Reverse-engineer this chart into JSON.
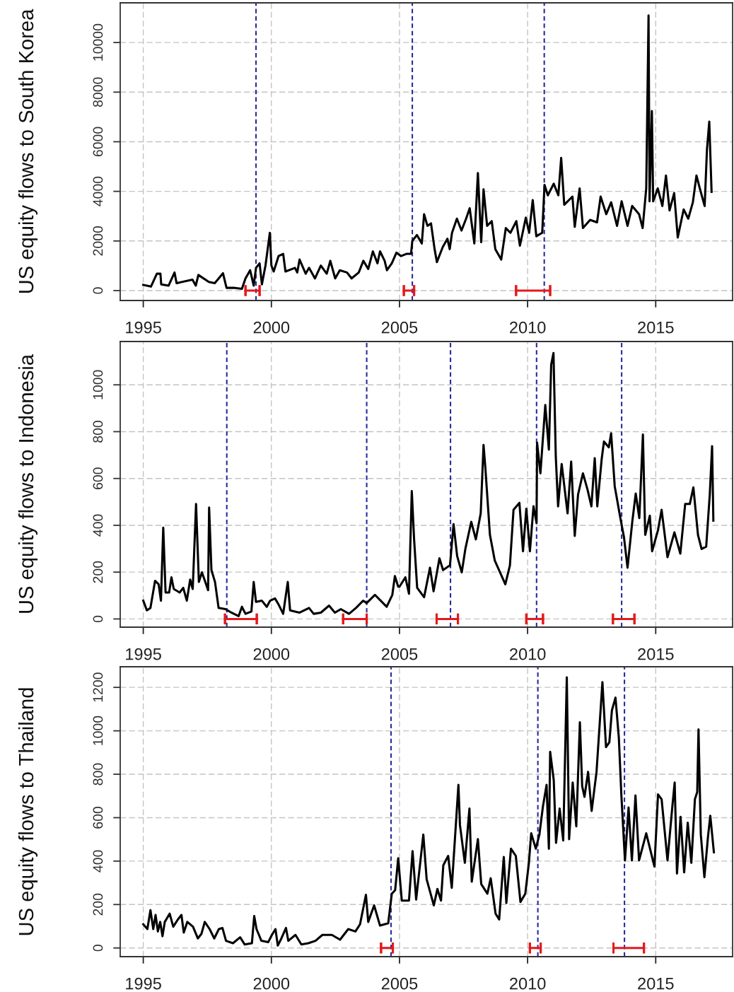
{
  "chart_data": [
    {
      "type": "line",
      "ylabel": "US equity flows to South Korea",
      "xlim": [
        1994.1,
        2018.0
      ],
      "ylim": [
        -400,
        11600
      ],
      "xticks": [
        1995,
        2000,
        2005,
        2010,
        2015
      ],
      "yticks": [
        0,
        2000,
        4000,
        6000,
        8000,
        10000
      ],
      "grid": true,
      "series": [
        {
          "color": "#000000",
          "x": [
            1995.0,
            1995.3,
            1995.53,
            1995.67,
            1995.7,
            1995.99,
            1996.22,
            1996.3,
            1996.92,
            1997.05,
            1997.15,
            1997.56,
            1997.79,
            1998.11,
            1998.25,
            1998.53,
            1998.85,
            1998.99,
            1999.17,
            1999.31,
            1999.4,
            1999.54,
            1999.63,
            1999.77,
            1999.94,
            2000.0,
            2000.09,
            2000.28,
            2000.46,
            2000.55,
            2000.92,
            2001.01,
            2001.1,
            2001.34,
            2001.47,
            2001.7,
            2001.93,
            2002.16,
            2002.3,
            2002.49,
            2002.67,
            2002.95,
            2003.13,
            2003.41,
            2003.59,
            2003.78,
            2003.96,
            2004.14,
            2004.24,
            2004.42,
            2004.51,
            2004.7,
            2004.88,
            2005.06,
            2005.27,
            2005.45,
            2005.5,
            2005.68,
            2005.87,
            2005.96,
            2006.09,
            2006.23,
            2006.37,
            2006.46,
            2006.69,
            2006.87,
            2006.96,
            2007.05,
            2007.24,
            2007.42,
            2007.6,
            2007.74,
            2007.92,
            2008.06,
            2008.19,
            2008.28,
            2008.42,
            2008.6,
            2008.74,
            2008.97,
            2009.15,
            2009.33,
            2009.56,
            2009.7,
            2009.93,
            2010.06,
            2010.2,
            2010.34,
            2010.57,
            2010.66,
            2010.79,
            2011.02,
            2011.2,
            2011.31,
            2011.43,
            2011.75,
            2011.84,
            2012.03,
            2012.16,
            2012.44,
            2012.71,
            2012.85,
            2013.07,
            2013.26,
            2013.49,
            2013.67,
            2013.9,
            2014.08,
            2014.35,
            2014.49,
            2014.63,
            2014.72,
            2014.76,
            2014.85,
            2014.9,
            2015.08,
            2015.26,
            2015.4,
            2015.54,
            2015.72,
            2015.86,
            2016.09,
            2016.27,
            2016.45,
            2016.59,
            2016.72,
            2016.91,
            2017.0,
            2017.09,
            2017.18
          ],
          "values": [
            230,
            160,
            680,
            680,
            250,
            200,
            730,
            300,
            440,
            200,
            630,
            350,
            300,
            700,
            110,
            110,
            70,
            490,
            820,
            200,
            915,
            1100,
            250,
            1010,
            2330,
            1010,
            770,
            1390,
            1480,
            770,
            915,
            730,
            1250,
            680,
            915,
            490,
            1010,
            680,
            1200,
            490,
            820,
            730,
            490,
            730,
            1200,
            870,
            1580,
            1100,
            1580,
            1200,
            820,
            1100,
            1530,
            1390,
            1480,
            1480,
            2000,
            2240,
            1900,
            3080,
            2610,
            2710,
            1670,
            1150,
            1760,
            2090,
            1670,
            2330,
            2900,
            2420,
            2900,
            3320,
            1900,
            4740,
            1950,
            4080,
            2610,
            2800,
            1670,
            1250,
            2520,
            2330,
            2800,
            1810,
            2940,
            2330,
            3650,
            2190,
            2330,
            4260,
            3840,
            4310,
            3840,
            5350,
            3460,
            3790,
            2570,
            4120,
            2520,
            2850,
            2750,
            3790,
            3080,
            3560,
            2610,
            3600,
            2610,
            3410,
            3080,
            2520,
            4120,
            11090,
            3600,
            7240,
            3600,
            4120,
            3410,
            4640,
            3230,
            3930,
            2140,
            3270,
            2900,
            3560,
            4640,
            4120,
            3410,
            5680,
            6810,
            3980
          ]
        },
        {
          "color": "#e31a1c",
          "x": [
            1998.99,
            1999.54
          ],
          "values": [
            0,
            0
          ]
        },
        {
          "color": "#e31a1c",
          "x": [
            2005.17,
            2005.57
          ],
          "values": [
            0,
            0
          ]
        },
        {
          "color": "#e31a1c",
          "x": [
            2009.55,
            2010.88
          ],
          "values": [
            0,
            0
          ]
        }
      ],
      "ref_lines": [
        {
          "axis": "x",
          "value": 1999.4,
          "color": "#2a2a9c",
          "line_style": "dashed"
        },
        {
          "axis": "x",
          "value": 2005.5,
          "color": "#2a2a9c",
          "line_style": "dashed"
        },
        {
          "axis": "x",
          "value": 2010.65,
          "color": "#2a2a9c",
          "line_style": "dashed"
        }
      ]
    },
    {
      "type": "line",
      "ylabel": "US equity flows to Indonesia",
      "xlim": [
        1994.1,
        2018.0
      ],
      "ylim": [
        -35,
        1185
      ],
      "xticks": [
        1995,
        2000,
        2005,
        2010,
        2015
      ],
      "yticks": [
        0,
        200,
        400,
        600,
        800,
        1000
      ],
      "grid": true,
      "series": [
        {
          "color": "#000000",
          "x": [
            1995.0,
            1995.14,
            1995.28,
            1995.46,
            1995.6,
            1995.69,
            1995.78,
            1995.87,
            1996.01,
            1996.1,
            1996.19,
            1996.42,
            1996.56,
            1996.7,
            1996.83,
            1996.93,
            1997.06,
            1997.17,
            1997.29,
            1997.42,
            1997.53,
            1997.57,
            1997.66,
            1997.8,
            1997.94,
            1998.21,
            1998.44,
            1998.72,
            1998.85,
            1998.99,
            1999.22,
            1999.31,
            1999.4,
            1999.63,
            1999.82,
            1999.95,
            2000.14,
            2000.28,
            2000.46,
            2000.64,
            2000.73,
            2001.1,
            2001.47,
            2001.65,
            2001.93,
            2002.25,
            2002.48,
            2002.71,
            2003.03,
            2003.3,
            2003.58,
            2003.72,
            2004.04,
            2004.5,
            2004.72,
            2004.82,
            2004.95,
            2005.0,
            2005.23,
            2005.37,
            2005.48,
            2005.57,
            2005.69,
            2005.96,
            2006.19,
            2006.33,
            2006.56,
            2006.7,
            2006.97,
            2007.11,
            2007.25,
            2007.43,
            2007.57,
            2007.8,
            2007.98,
            2008.17,
            2008.28,
            2008.35,
            2008.53,
            2008.72,
            2008.99,
            2009.13,
            2009.31,
            2009.45,
            2009.68,
            2009.82,
            2009.95,
            2010.09,
            2010.23,
            2010.35,
            2010.37,
            2010.5,
            2010.69,
            2010.83,
            2010.92,
            2011.01,
            2011.1,
            2011.19,
            2011.33,
            2011.56,
            2011.7,
            2011.84,
            2011.97,
            2012.16,
            2012.34,
            2012.49,
            2012.62,
            2012.72,
            2012.89,
            2012.98,
            2013.17,
            2013.26,
            2013.4,
            2013.62,
            2013.76,
            2013.9,
            2014.08,
            2014.22,
            2014.36,
            2014.5,
            2014.59,
            2014.77,
            2014.86,
            2015.09,
            2015.23,
            2015.46,
            2015.73,
            2015.96,
            2016.15,
            2016.33,
            2016.47,
            2016.65,
            2016.79,
            2016.97,
            2017.11,
            2017.2,
            2017.25
          ],
          "values": [
            78,
            37,
            47,
            163,
            148,
            78,
            390,
            113,
            113,
            178,
            128,
            113,
            133,
            78,
            168,
            128,
            491,
            158,
            199,
            158,
            123,
            476,
            209,
            158,
            47,
            42,
            27,
            12,
            52,
            22,
            32,
            158,
            73,
            78,
            52,
            78,
            88,
            62,
            22,
            158,
            37,
            27,
            47,
            22,
            27,
            57,
            27,
            42,
            22,
            47,
            78,
            68,
            103,
            52,
            103,
            183,
            138,
            138,
            178,
            108,
            546,
            340,
            133,
            93,
            219,
            118,
            259,
            209,
            229,
            405,
            269,
            199,
            299,
            415,
            340,
            451,
            743,
            647,
            359,
            249,
            183,
            148,
            229,
            466,
            496,
            289,
            471,
            289,
            481,
            410,
            753,
            622,
            914,
            723,
            1086,
            1136,
            693,
            481,
            662,
            451,
            672,
            355,
            532,
            622,
            552,
            481,
            687,
            481,
            682,
            758,
            733,
            793,
            567,
            431,
            350,
            219,
            410,
            536,
            431,
            788,
            359,
            441,
            289,
            380,
            466,
            264,
            370,
            279,
            491,
            491,
            562,
            359,
            299,
            309,
            532,
            738,
            420
          ]
        },
        {
          "color": "#e31a1c",
          "x": [
            1998.19,
            1999.43
          ],
          "values": [
            0,
            0
          ]
        },
        {
          "color": "#e31a1c",
          "x": [
            2002.8,
            2003.72
          ],
          "values": [
            0,
            0
          ]
        },
        {
          "color": "#e31a1c",
          "x": [
            2006.45,
            2007.28
          ],
          "values": [
            0,
            0
          ]
        },
        {
          "color": "#e31a1c",
          "x": [
            2009.95,
            2010.6
          ],
          "values": [
            0,
            0
          ]
        },
        {
          "color": "#e31a1c",
          "x": [
            2013.33,
            2014.17
          ],
          "values": [
            0,
            0
          ]
        }
      ],
      "ref_lines": [
        {
          "axis": "x",
          "value": 1998.26,
          "color": "#2a2a9c",
          "line_style": "dashed"
        },
        {
          "axis": "x",
          "value": 2003.72,
          "color": "#2a2a9c",
          "line_style": "dashed"
        },
        {
          "axis": "x",
          "value": 2006.99,
          "color": "#2a2a9c",
          "line_style": "dashed"
        },
        {
          "axis": "x",
          "value": 2010.35,
          "color": "#2a2a9c",
          "line_style": "dashed"
        },
        {
          "axis": "x",
          "value": 2013.67,
          "color": "#2a2a9c",
          "line_style": "dashed"
        }
      ]
    },
    {
      "type": "line",
      "ylabel": "US equity flows to Thailand",
      "xlim": [
        1994.1,
        2018.0
      ],
      "ylim": [
        -40,
        1295
      ],
      "xticks": [
        1995,
        2000,
        2005,
        2010,
        2015
      ],
      "yticks": [
        0,
        200,
        400,
        600,
        800,
        1000,
        1200
      ],
      "grid": true,
      "series": [
        {
          "color": "#000000",
          "x": [
            1995.0,
            1995.16,
            1995.28,
            1995.39,
            1995.48,
            1995.57,
            1995.66,
            1995.75,
            1995.84,
            1996.03,
            1996.17,
            1996.35,
            1996.49,
            1996.58,
            1996.72,
            1996.94,
            1997.13,
            1997.27,
            1997.4,
            1997.59,
            1997.77,
            1997.95,
            1998.09,
            1998.23,
            1998.5,
            1998.78,
            1998.96,
            1999.24,
            1999.33,
            1999.42,
            1999.61,
            1999.88,
            2000.02,
            2000.16,
            2000.25,
            2000.39,
            2000.57,
            2000.66,
            2000.94,
            2001.17,
            2001.44,
            2001.72,
            2001.99,
            2002.36,
            2002.68,
            2003.0,
            2003.28,
            2003.46,
            2003.69,
            2003.78,
            2004.01,
            2004.24,
            2004.56,
            2004.7,
            2004.83,
            2004.95,
            2005.09,
            2005.37,
            2005.51,
            2005.65,
            2005.93,
            2006.06,
            2006.34,
            2006.48,
            2006.62,
            2006.71,
            2006.9,
            2007.04,
            2007.3,
            2007.36,
            2007.55,
            2007.73,
            2007.82,
            2008.06,
            2008.19,
            2008.43,
            2008.56,
            2008.75,
            2008.89,
            2009.07,
            2009.17,
            2009.35,
            2009.54,
            2009.72,
            2009.91,
            2010.05,
            2010.14,
            2010.32,
            2010.46,
            2010.6,
            2010.74,
            2010.83,
            2010.88,
            2011.02,
            2011.11,
            2011.25,
            2011.39,
            2011.53,
            2011.62,
            2011.76,
            2011.9,
            2012.04,
            2012.13,
            2012.22,
            2012.36,
            2012.5,
            2012.69,
            2012.92,
            2013.06,
            2013.19,
            2013.29,
            2013.43,
            2013.56,
            2013.66,
            2013.8,
            2013.94,
            2014.07,
            2014.21,
            2014.35,
            2014.63,
            2014.95,
            2015.09,
            2015.23,
            2015.46,
            2015.65,
            2015.74,
            2015.83,
            2015.97,
            2016.11,
            2016.25,
            2016.39,
            2016.53,
            2016.62,
            2016.67,
            2016.76,
            2016.9,
            2017.04,
            2017.13,
            2017.27
          ],
          "values": [
            109,
            87,
            174,
            87,
            152,
            76,
            120,
            54,
            120,
            158,
            98,
            131,
            152,
            71,
            120,
            98,
            44,
            65,
            120,
            87,
            44,
            87,
            92,
            33,
            22,
            49,
            16,
            22,
            147,
            87,
            33,
            27,
            60,
            87,
            11,
            44,
            92,
            33,
            60,
            16,
            22,
            33,
            60,
            60,
            38,
            87,
            76,
            109,
            245,
            120,
            196,
            103,
            114,
            250,
            266,
            413,
            218,
            218,
            446,
            223,
            522,
            316,
            196,
            272,
            218,
            381,
            424,
            277,
            751,
            566,
            392,
            642,
            305,
            501,
            294,
            250,
            321,
            158,
            131,
            419,
            207,
            457,
            424,
            212,
            250,
            392,
            528,
            457,
            522,
            653,
            751,
            457,
            903,
            773,
            484,
            642,
            495,
            1246,
            501,
            762,
            560,
            1039,
            745,
            696,
            811,
            631,
            811,
            1224,
            925,
            947,
            1094,
            1153,
            969,
            702,
            403,
            647,
            403,
            702,
            403,
            528,
            375,
            707,
            685,
            403,
            653,
            762,
            343,
            604,
            348,
            577,
            392,
            685,
            718,
            1007,
            522,
            326,
            512,
            609,
            441
          ]
        },
        {
          "color": "#e31a1c",
          "x": [
            2004.28,
            2004.74
          ],
          "values": [
            0,
            0
          ]
        },
        {
          "color": "#e31a1c",
          "x": [
            2010.09,
            2010.51
          ],
          "values": [
            0,
            0
          ]
        },
        {
          "color": "#e31a1c",
          "x": [
            2013.35,
            2014.54
          ],
          "values": [
            0,
            0
          ]
        }
      ],
      "ref_lines": [
        {
          "axis": "x",
          "value": 2004.67,
          "color": "#2a2a9c",
          "line_style": "dashed"
        },
        {
          "axis": "x",
          "value": 2010.4,
          "color": "#2a2a9c",
          "line_style": "dashed"
        },
        {
          "axis": "x",
          "value": 2013.78,
          "color": "#2a2a9c",
          "line_style": "dashed"
        }
      ]
    }
  ]
}
